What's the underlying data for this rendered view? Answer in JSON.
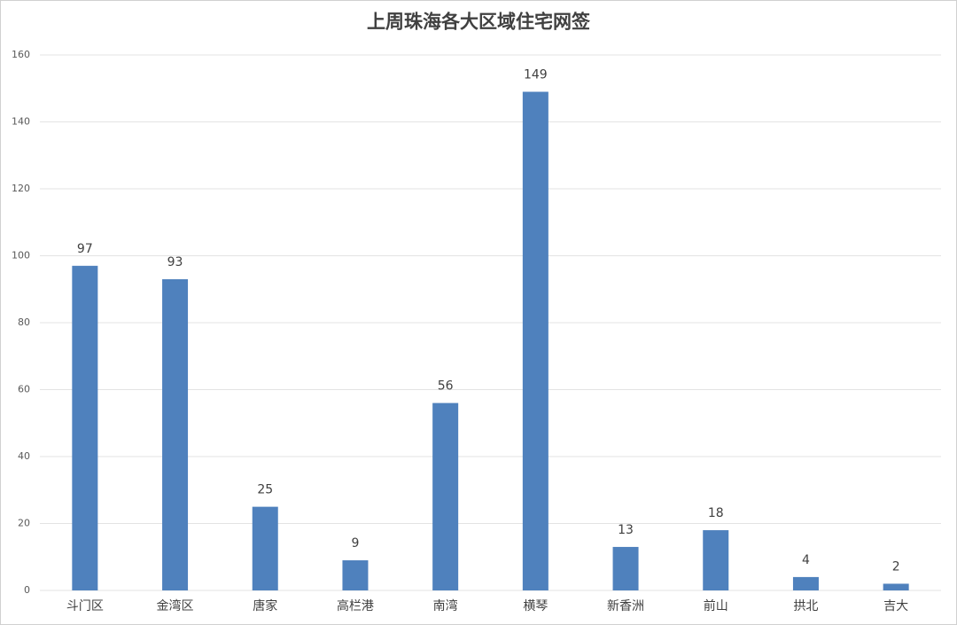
{
  "chart_data": {
    "type": "bar",
    "title": "上周珠海各大区域住宅网签",
    "categories": [
      "斗门区",
      "金湾区",
      "唐家",
      "高栏港",
      "南湾",
      "横琴",
      "新香洲",
      "前山",
      "拱北",
      "吉大"
    ],
    "values": [
      97,
      93,
      25,
      9,
      56,
      149,
      13,
      18,
      4,
      2
    ],
    "color": "#4f81bd",
    "ylim": [
      0,
      160
    ],
    "yticks": [
      0,
      20,
      40,
      60,
      80,
      100,
      120,
      140,
      160
    ],
    "grid": true
  }
}
